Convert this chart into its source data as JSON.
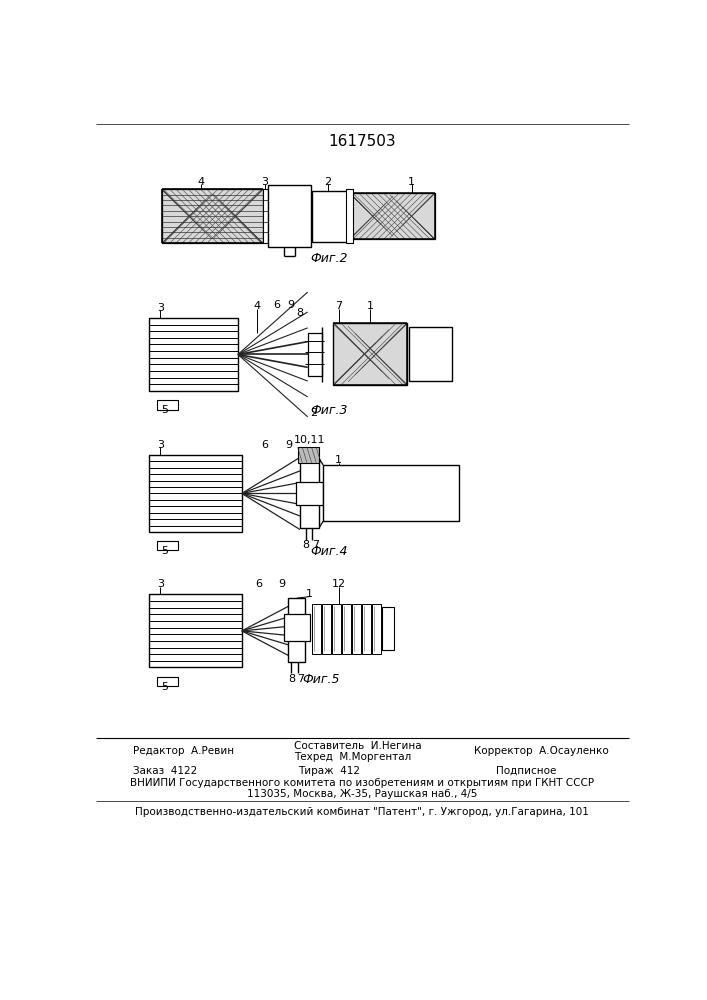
{
  "title": "1617503",
  "bg_color": "#ffffff",
  "line_color": "#000000",
  "footer": {
    "editor": "Редактор  А.Ревин",
    "composer": "Составитель  И.Негина",
    "corrector": "Корректор  А.Осауленко",
    "techred": "Техред  М.Моргентал",
    "order": "Заказ  4122",
    "tirazh": "Тираж  412",
    "podpisnoe": "Подписное",
    "vniipи": "ВНИИПИ Государственного комитета по изобретениям и открытиям при ГКНТ СССР",
    "address": "113035, Москва, Ж-35, Раушская наб., 4/5",
    "patent": "Производственно-издательский комбинат \"Патент\", г. Ужгород, ул.Гагарина, 101"
  }
}
